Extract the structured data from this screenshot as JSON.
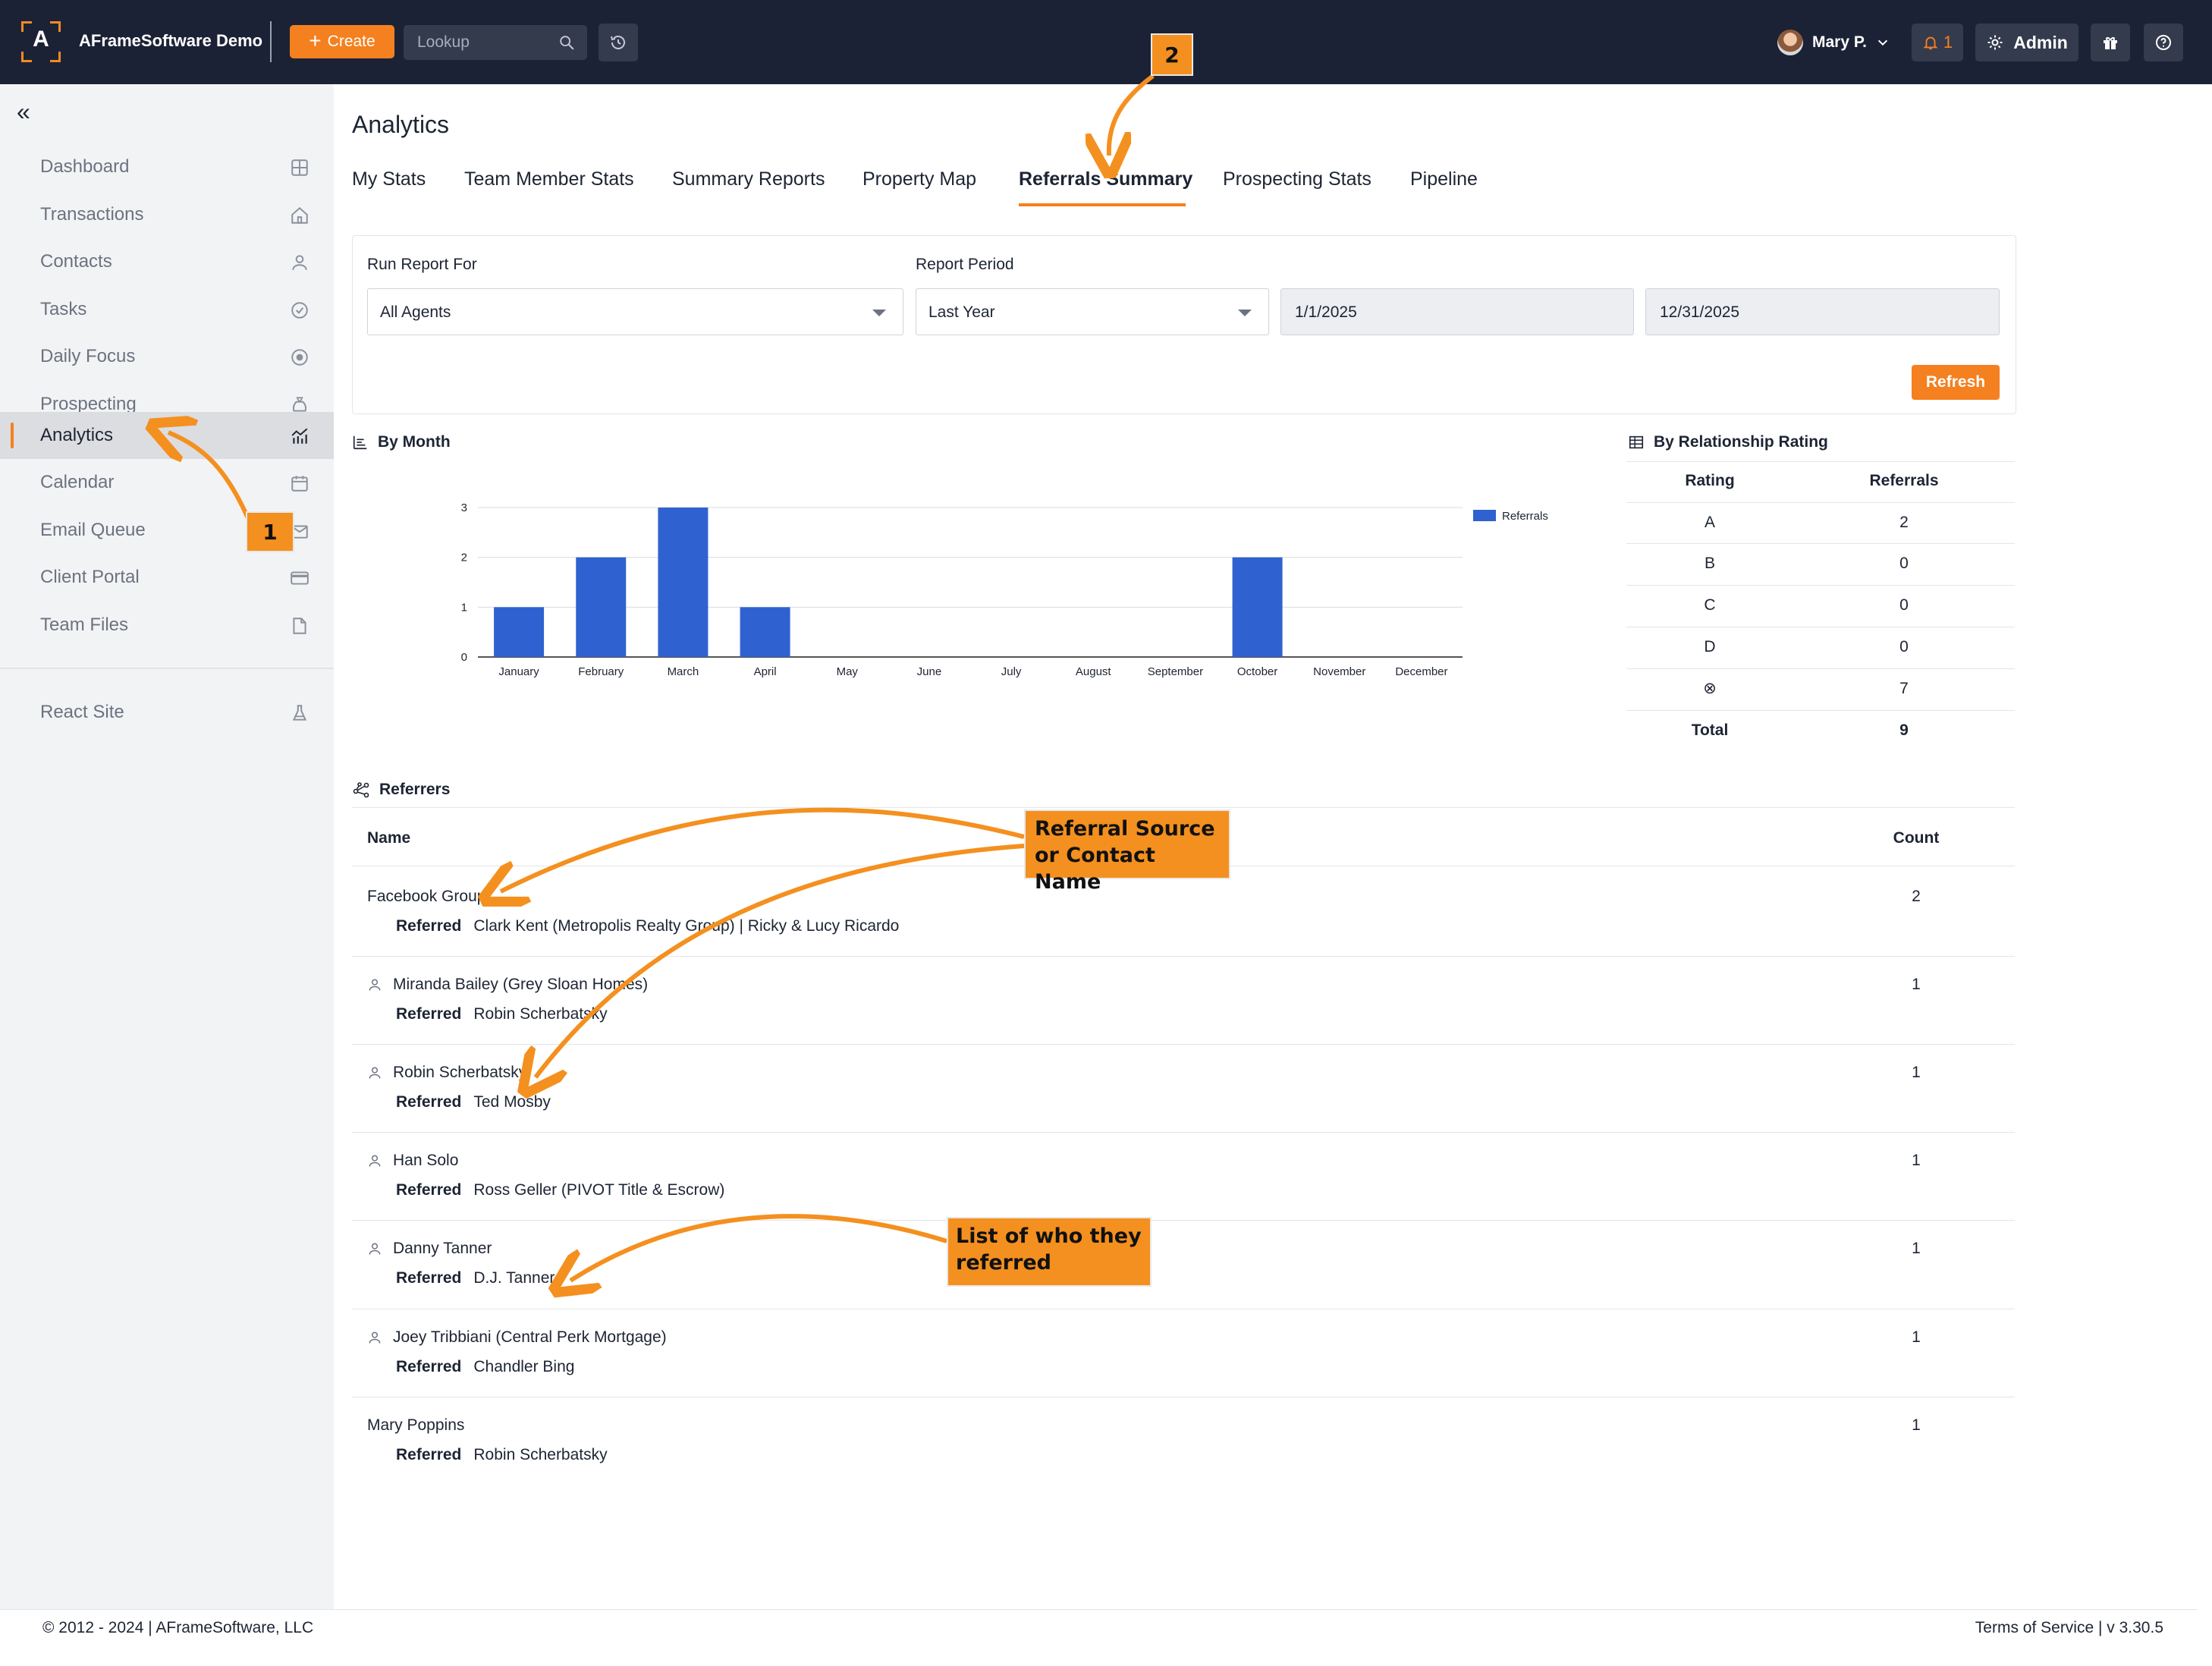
{
  "topbar": {
    "logo_letter": "A",
    "app_title": "AFrameSoftware Demo",
    "create_label": "Create",
    "lookup_placeholder": "Lookup",
    "user_name": "Mary P.",
    "notification_count": "1",
    "admin_label": "Admin"
  },
  "sidebar": {
    "collapse_glyph": "«",
    "items": [
      {
        "label": "Dashboard",
        "icon": "grid-icon"
      },
      {
        "label": "Transactions",
        "icon": "home-icon"
      },
      {
        "label": "Contacts",
        "icon": "person-icon"
      },
      {
        "label": "Tasks",
        "icon": "check-circle-icon"
      },
      {
        "label": "Daily Focus",
        "icon": "target-icon"
      },
      {
        "label": "Prospecting",
        "icon": "money-bag-icon"
      },
      {
        "label": "Analytics",
        "icon": "chart-icon",
        "active": true
      },
      {
        "label": "Calendar",
        "icon": "calendar-icon"
      },
      {
        "label": "Email Queue",
        "icon": "email-queue-icon"
      },
      {
        "label": "Client Portal",
        "icon": "card-icon"
      },
      {
        "label": "Team Files",
        "icon": "file-icon"
      },
      {
        "label": "React Site",
        "icon": "flask-icon"
      }
    ]
  },
  "main": {
    "title": "Analytics",
    "tabs": [
      "My Stats",
      "Team Member Stats",
      "Summary Reports",
      "Property Map",
      "Referrals Summary",
      "Prospecting Stats",
      "Pipeline"
    ],
    "active_tab": "Referrals Summary",
    "filters": {
      "run_report_for_label": "Run Report For",
      "run_report_for_value": "All Agents",
      "report_period_label": "Report Period",
      "report_period_value": "Last Year",
      "start_date": "1/1/2025",
      "end_date": "12/31/2025",
      "refresh_label": "Refresh"
    },
    "by_month_title": "By Month",
    "by_rating_title": "By Relationship Rating",
    "referrers_title": "Referrers"
  },
  "chart_data": {
    "type": "bar",
    "categories": [
      "January",
      "February",
      "March",
      "April",
      "May",
      "June",
      "July",
      "August",
      "September",
      "October",
      "November",
      "December"
    ],
    "series": [
      {
        "name": "Referrals",
        "values": [
          1,
          2,
          3,
          1,
          0,
          0,
          0,
          0,
          0,
          2,
          0,
          0
        ]
      }
    ],
    "yticks": [
      0,
      1,
      2,
      3
    ],
    "ylim": [
      0,
      3
    ],
    "grid": true,
    "legend": "top-right",
    "bar_color": "#2f62d0"
  },
  "rating_table": {
    "headers": [
      "Rating",
      "Referrals"
    ],
    "rows": [
      {
        "rating": "A",
        "referrals": "2"
      },
      {
        "rating": "B",
        "referrals": "0"
      },
      {
        "rating": "C",
        "referrals": "0"
      },
      {
        "rating": "D",
        "referrals": "0"
      },
      {
        "rating": "⊗",
        "referrals": "7"
      }
    ],
    "total_label": "Total",
    "total_value": "9"
  },
  "referrers": {
    "headers": {
      "name": "Name",
      "count": "Count"
    },
    "referred_label": "Referred",
    "rows": [
      {
        "name": "Facebook Group",
        "is_contact": false,
        "referred": "Clark Kent (Metropolis Realty Group) | Ricky & Lucy Ricardo",
        "count": "2"
      },
      {
        "name": "Miranda Bailey (Grey Sloan Homes)",
        "is_contact": true,
        "referred": "Robin Scherbatsky",
        "count": "1"
      },
      {
        "name": "Robin Scherbatsky",
        "is_contact": true,
        "referred": "Ted Mosby",
        "count": "1"
      },
      {
        "name": "Han Solo",
        "is_contact": true,
        "referred": "Ross Geller (PIVOT Title & Escrow)",
        "count": "1"
      },
      {
        "name": "Danny Tanner",
        "is_contact": true,
        "referred": "D.J. Tanner",
        "count": "1"
      },
      {
        "name": "Joey Tribbiani (Central Perk Mortgage)",
        "is_contact": true,
        "referred": "Chandler Bing",
        "count": "1"
      },
      {
        "name": "Mary Poppins",
        "is_contact": false,
        "referred": "Robin Scherbatsky",
        "count": "1"
      }
    ]
  },
  "annotations": {
    "step1": "1",
    "step2": "2",
    "callout_source_line1": "Referral Source",
    "callout_source_line2": "or Contact Name",
    "callout_list_line1": "List of who they",
    "callout_list_line2": "referred",
    "color": "#f4901f"
  },
  "footer": {
    "copyright": "© 2012 - 2024 | AFrameSoftware, LLC",
    "right": "Terms of Service | v 3.30.5"
  }
}
